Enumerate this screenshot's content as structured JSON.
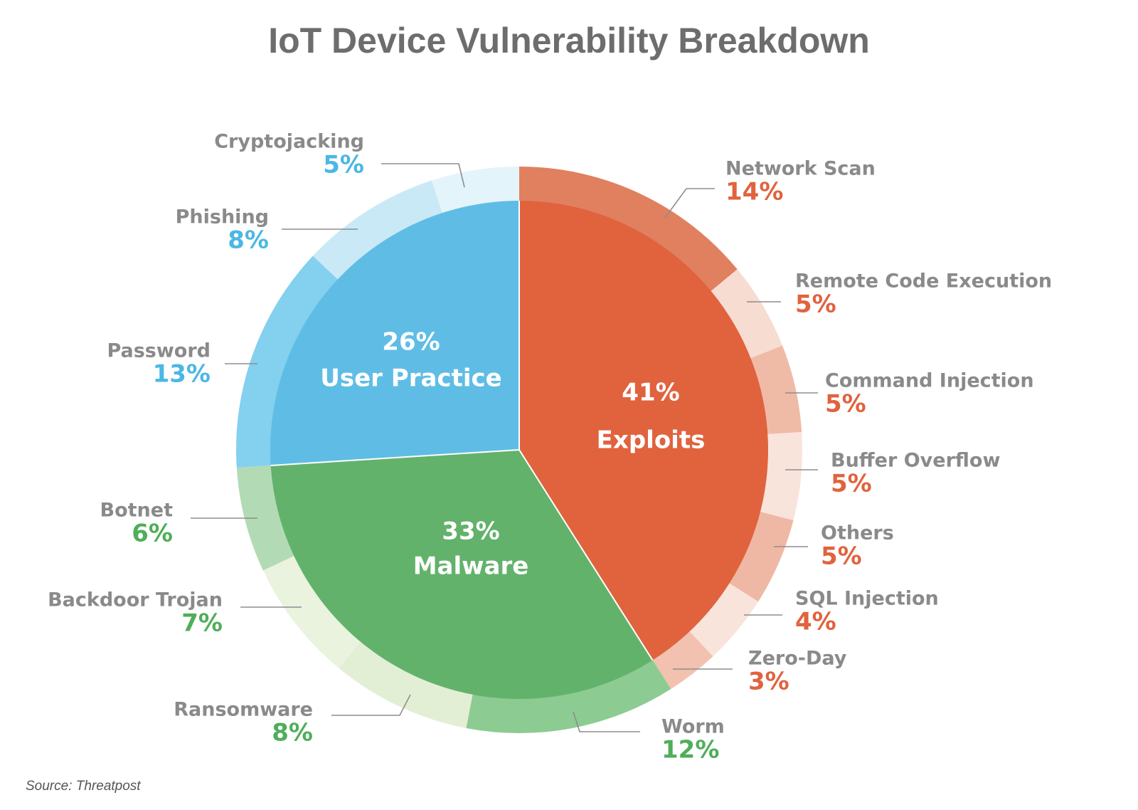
{
  "chart_data": {
    "type": "pie",
    "title": "IoT Device Vulnerability Breakdown",
    "source": "Source: Threatpost",
    "categories": [
      {
        "name": "Exploits",
        "pct_label": "41%",
        "value": 41,
        "color": "#e0633e",
        "subs": [
          {
            "name": "Network Scan",
            "pct_label": "14%",
            "value": 14,
            "color": "#e0805f"
          },
          {
            "name": "Remote Code Execution",
            "pct_label": "5%",
            "value": 5,
            "color": "#f7dcd2"
          },
          {
            "name": "Command Injection",
            "pct_label": "5%",
            "value": 5,
            "color": "#efbba7"
          },
          {
            "name": "Buffer Overflow",
            "pct_label": "5%",
            "value": 5,
            "color": "#f9e4dc"
          },
          {
            "name": "Others",
            "pct_label": "5%",
            "value": 5,
            "color": "#efb8a4"
          },
          {
            "name": "SQL Injection",
            "pct_label": "4%",
            "value": 4,
            "color": "#f9e4dc"
          },
          {
            "name": "Zero-Day",
            "pct_label": "3%",
            "value": 3,
            "color": "#f2c1af"
          }
        ]
      },
      {
        "name": "Malware",
        "pct_label": "33%",
        "value": 33,
        "color": "#63b26b",
        "subs": [
          {
            "name": "Worm",
            "pct_label": "12%",
            "value": 12,
            "color": "#8ccb91"
          },
          {
            "name": "Ransomware",
            "pct_label": "8%",
            "value": 8,
            "color": "#e3efd5"
          },
          {
            "name": "Backdoor Trojan",
            "pct_label": "7%",
            "value": 7,
            "color": "#eaf3de"
          },
          {
            "name": "Botnet",
            "pct_label": "6%",
            "value": 6,
            "color": "#b2dbb5"
          }
        ]
      },
      {
        "name": "User Practice",
        "pct_label": "26%",
        "value": 26,
        "color": "#5fbde5",
        "subs": [
          {
            "name": "Password",
            "pct_label": "13%",
            "value": 13,
            "color": "#83d0ef"
          },
          {
            "name": "Phishing",
            "pct_label": "8%",
            "value": 8,
            "color": "#c9e9f7"
          },
          {
            "name": "Cryptojacking",
            "pct_label": "5%",
            "value": 5,
            "color": "#e4f4fb"
          }
        ]
      }
    ],
    "label_colors": {
      "name": "#8a8a8a",
      "Exploits": "#e0633e",
      "Malware": "#4fae5a",
      "User Practice": "#4bb7e5"
    }
  }
}
